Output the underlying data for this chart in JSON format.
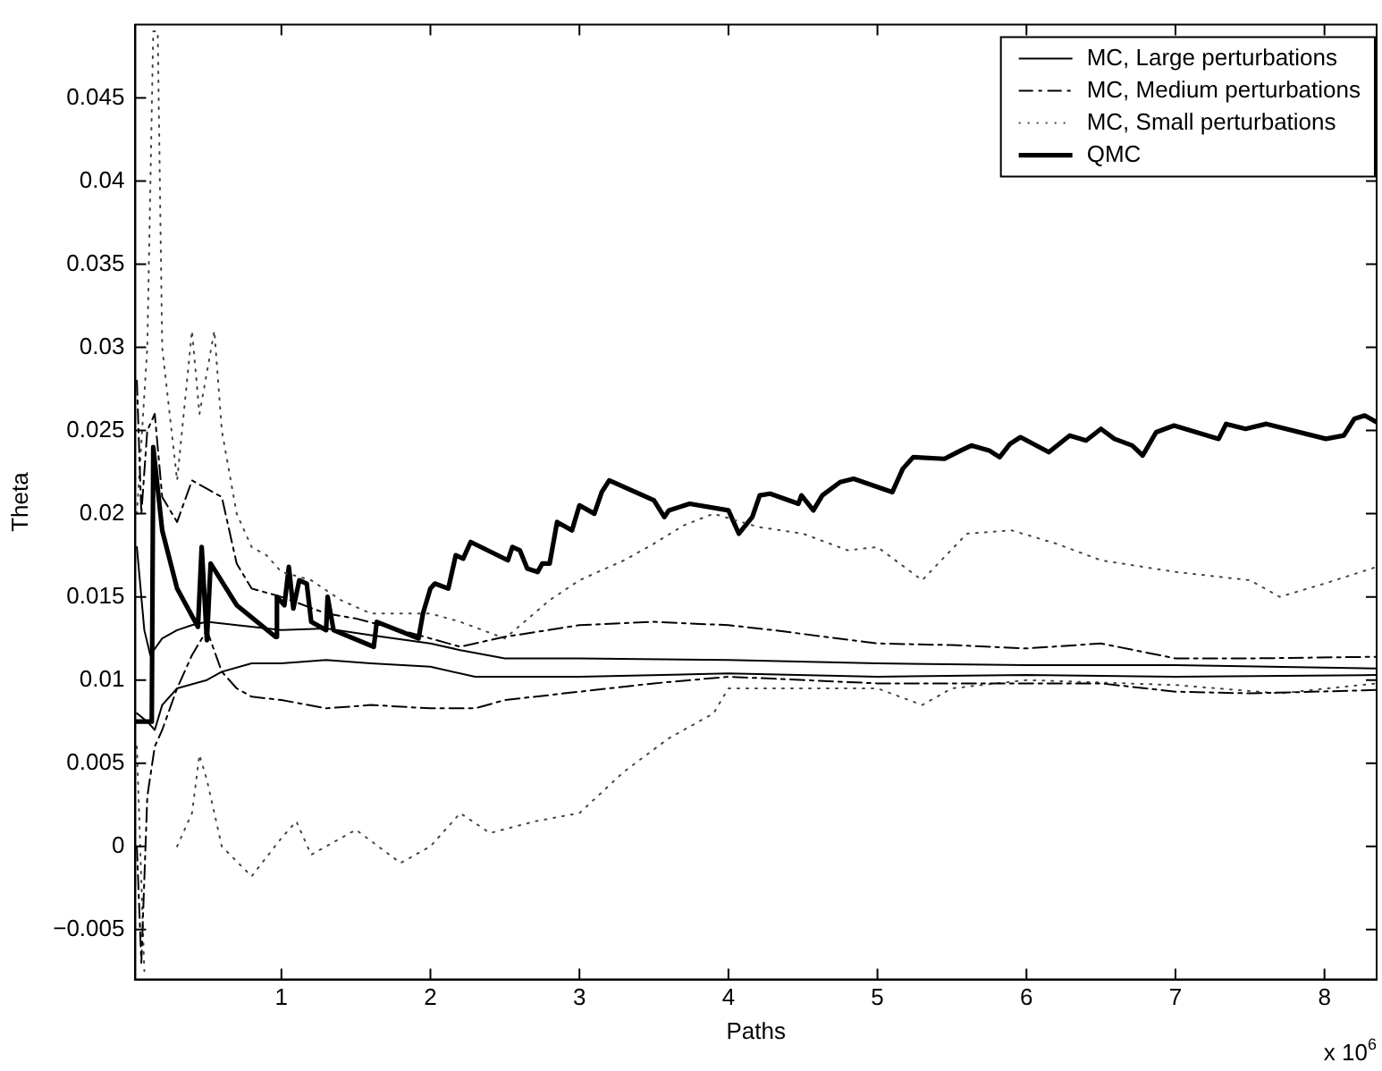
{
  "chart_data": {
    "type": "line",
    "xlabel": "Paths",
    "ylabel": "Theta",
    "xlim": [
      0.02,
      8.35
    ],
    "ylim": [
      -0.008,
      0.0494
    ],
    "xticks": [
      1,
      2,
      3,
      4,
      5,
      6,
      7,
      8
    ],
    "yticks": [
      {
        "value": -0.005,
        "label": "−0.005"
      },
      0,
      0.005,
      0.01,
      0.015,
      0.02,
      0.025,
      0.03,
      0.035,
      0.04,
      0.045
    ],
    "grid": false,
    "legend": "top right",
    "marker": "none",
    "annotations": [
      "x 10$^{6}$"
    ],
    "series": [
      {
        "name": "MC, Large perturbations",
        "color": "#000000",
        "line_style": "solid",
        "x": [
          0.03,
          0.08,
          0.12,
          0.2,
          0.3,
          0.4,
          0.5,
          0.7,
          1.0,
          1.3,
          1.6,
          2.0,
          2.2,
          2.5,
          3,
          4,
          5,
          6,
          7,
          8.35
        ],
        "values": [
          0.018,
          0.013,
          0.0115,
          0.0125,
          0.013,
          0.0133,
          0.0135,
          0.0133,
          0.013,
          0.0131,
          0.0127,
          0.0122,
          0.0118,
          0.0113,
          0.0113,
          0.0112,
          0.011,
          0.0109,
          0.0109,
          0.0107
        ]
      },
      {
        "color": "#000000",
        "line_style": "solid",
        "x": [
          0.03,
          0.1,
          0.15,
          0.2,
          0.3,
          0.5,
          0.6,
          0.8,
          1.0,
          1.3,
          1.6,
          2.0,
          2.3,
          3,
          4,
          5,
          6,
          7,
          8.35
        ],
        "values": [
          0.008,
          0.0075,
          0.007,
          0.0085,
          0.0095,
          0.01,
          0.0105,
          0.011,
          0.011,
          0.0112,
          0.011,
          0.0108,
          0.0102,
          0.0102,
          0.0104,
          0.0102,
          0.0103,
          0.0102,
          0.0103
        ]
      },
      {
        "name": "MC, Medium perturbations",
        "color": "#000000",
        "line_style": "dashed",
        "x": [
          0.03,
          0.06,
          0.1,
          0.15,
          0.2,
          0.3,
          0.4,
          0.5,
          0.6,
          0.7,
          0.8,
          1.0,
          1.3,
          1.5,
          1.8,
          2.2,
          2.5,
          3,
          3.5,
          4,
          4.3,
          5,
          5.5,
          6,
          6.5,
          7,
          7.5,
          8.35
        ],
        "values": [
          0.028,
          0.02,
          0.025,
          0.026,
          0.021,
          0.0195,
          0.022,
          0.0215,
          0.021,
          0.017,
          0.0155,
          0.015,
          0.014,
          0.0137,
          0.013,
          0.012,
          0.0126,
          0.0133,
          0.0135,
          0.0133,
          0.013,
          0.0122,
          0.0121,
          0.0119,
          0.0122,
          0.0113,
          0.0113,
          0.0114
        ]
      },
      {
        "color": "#000000",
        "line_style": "dashed",
        "x": [
          0.03,
          0.06,
          0.1,
          0.15,
          0.2,
          0.3,
          0.4,
          0.5,
          0.6,
          0.7,
          0.8,
          1.0,
          1.3,
          1.6,
          2.0,
          2.3,
          2.5,
          3,
          3.5,
          4,
          5,
          6,
          6.5,
          7,
          7.5,
          8.35
        ],
        "values": [
          0.0,
          -0.007,
          0.003,
          0.006,
          0.007,
          0.0095,
          0.0115,
          0.013,
          0.0105,
          0.0095,
          0.009,
          0.0088,
          0.0083,
          0.0085,
          0.0083,
          0.0083,
          0.0088,
          0.0093,
          0.0098,
          0.0102,
          0.0098,
          0.0098,
          0.0098,
          0.0093,
          0.0092,
          0.0094
        ]
      },
      {
        "name": "MC, Small perturbations",
        "color": "#444444",
        "line_style": "dotted",
        "x": [
          0.03,
          0.1,
          0.14,
          0.17,
          0.2,
          0.3,
          0.4,
          0.45,
          0.55,
          0.6,
          0.7,
          0.8,
          0.9,
          1.0,
          1.2,
          1.4,
          1.6,
          2.0,
          2.2,
          2.5,
          2.8,
          3.0,
          3.3,
          3.5,
          3.7,
          3.9,
          4.2,
          4.5,
          4.8,
          5.0,
          5.3,
          5.6,
          5.9,
          6.2,
          6.5,
          7,
          7.5,
          7.7,
          8.0,
          8.35
        ],
        "values": [
          0.02,
          0.03,
          0.049,
          0.049,
          0.03,
          0.022,
          0.031,
          0.026,
          0.031,
          0.025,
          0.02,
          0.018,
          0.0175,
          0.0165,
          0.016,
          0.0148,
          0.014,
          0.014,
          0.0135,
          0.0125,
          0.0148,
          0.016,
          0.0172,
          0.0182,
          0.0193,
          0.02,
          0.0192,
          0.0188,
          0.0178,
          0.018,
          0.016,
          0.0188,
          0.019,
          0.0182,
          0.0172,
          0.0165,
          0.016,
          0.015,
          0.0158,
          0.0168
        ]
      },
      {
        "color": "#444444",
        "line_style": "dotted",
        "x": [
          0.03,
          0.08,
          0.25,
          0.3,
          0.4,
          0.45,
          0.5,
          0.6,
          0.8,
          1.0,
          1.1,
          1.2,
          1.3,
          1.5,
          1.8,
          2.0,
          2.2,
          2.4,
          2.7,
          3.0,
          3.3,
          3.6,
          3.9,
          4.0,
          4.5,
          5.0,
          5.3,
          5.5,
          6,
          7,
          7.7,
          8.35
        ],
        "values": [
          0.006,
          -0.0075,
          null,
          0.0,
          0.002,
          0.0055,
          0.004,
          0.0,
          -0.0018,
          0.0005,
          0.0015,
          -0.0005,
          0.0,
          0.001,
          -0.001,
          0.0,
          0.002,
          0.0008,
          0.0015,
          0.002,
          0.0045,
          0.0065,
          0.008,
          0.0095,
          0.0095,
          0.0095,
          0.0085,
          0.0095,
          0.01,
          0.0097,
          0.0092,
          0.0098
        ]
      },
      {
        "name": "QMC",
        "color": "#000000",
        "line_style": "solid",
        "x": [
          0.02,
          0.13,
          0.14,
          0.2,
          0.3,
          0.44,
          0.465,
          0.5,
          0.525,
          0.7,
          0.96,
          0.97,
          1.02,
          1.05,
          1.08,
          1.12,
          1.17,
          1.2,
          1.3,
          1.31,
          1.35,
          1.62,
          1.64,
          1.92,
          1.95,
          2.0,
          2.03,
          2.12,
          2.17,
          2.22,
          2.27,
          2.52,
          2.55,
          2.6,
          2.65,
          2.72,
          2.75,
          2.8,
          2.85,
          2.95,
          3.0,
          3.1,
          3.15,
          3.2,
          3.5,
          3.57,
          3.6,
          3.74,
          4.0,
          4.07,
          4.16,
          4.21,
          4.28,
          4.47,
          4.49,
          4.57,
          4.63,
          4.75,
          4.84,
          5.1,
          5.17,
          5.24,
          5.45,
          5.56,
          5.63,
          5.75,
          5.82,
          5.89,
          5.96,
          6.15,
          6.29,
          6.4,
          6.5,
          6.59,
          6.71,
          6.78,
          6.87,
          6.99,
          7.29,
          7.34,
          7.47,
          7.61,
          8.01,
          8.13,
          8.2,
          8.27,
          8.35
        ],
        "values": [
          0.0075,
          0.0075,
          0.024,
          0.019,
          0.0155,
          0.0132,
          0.018,
          0.0124,
          0.017,
          0.0145,
          0.0126,
          0.015,
          0.0145,
          0.0168,
          0.0143,
          0.016,
          0.0158,
          0.0135,
          0.013,
          0.015,
          0.013,
          0.012,
          0.0135,
          0.0125,
          0.014,
          0.0155,
          0.0158,
          0.0155,
          0.0175,
          0.0173,
          0.0183,
          0.0172,
          0.018,
          0.0178,
          0.0167,
          0.0165,
          0.017,
          0.017,
          0.0195,
          0.019,
          0.0205,
          0.02,
          0.0213,
          0.022,
          0.0208,
          0.0198,
          0.0202,
          0.0206,
          0.0202,
          0.0188,
          0.0198,
          0.0211,
          0.0212,
          0.0206,
          0.0211,
          0.0202,
          0.0211,
          0.0219,
          0.0221,
          0.0213,
          0.0227,
          0.0234,
          0.0233,
          0.0238,
          0.0241,
          0.0238,
          0.0234,
          0.0242,
          0.0246,
          0.0237,
          0.0247,
          0.0244,
          0.0251,
          0.0245,
          0.0241,
          0.0235,
          0.0249,
          0.0253,
          0.0245,
          0.0254,
          0.0251,
          0.0254,
          0.0245,
          0.0247,
          0.0257,
          0.0259,
          0.0255
        ]
      }
    ]
  }
}
